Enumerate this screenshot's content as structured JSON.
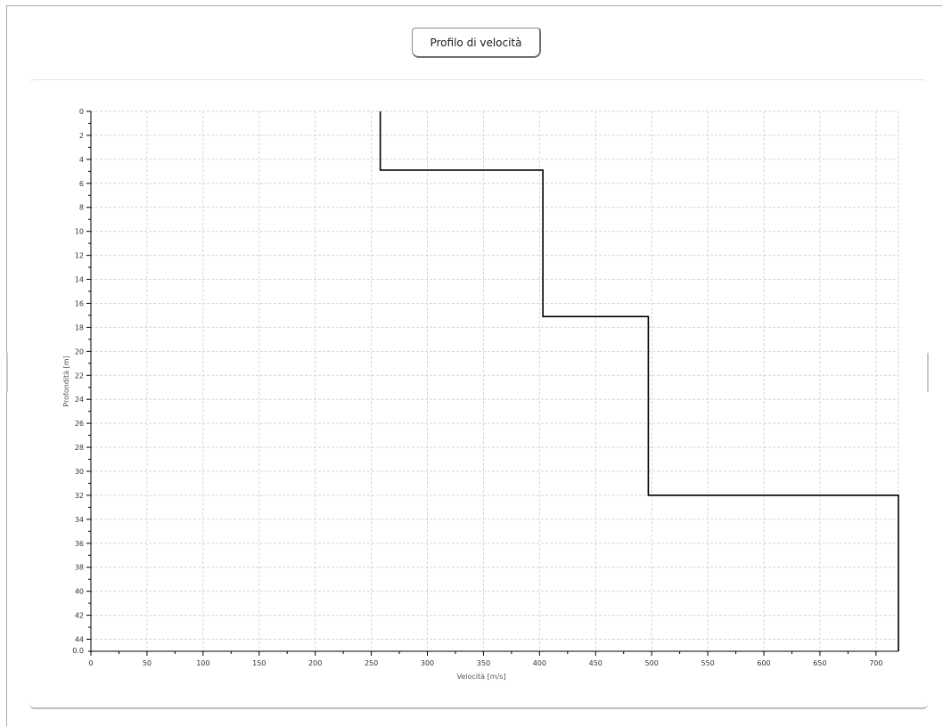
{
  "title": "Profilo di velocità",
  "chart_data": {
    "type": "line",
    "title": "Profilo di velocità",
    "xlabel": "Velocità [m/s]",
    "ylabel": "Profondità [m]",
    "xlim": [
      0,
      720
    ],
    "ylim": [
      0,
      45
    ],
    "y_reversed": true,
    "x_ticks": [
      0,
      50,
      100,
      150,
      200,
      250,
      300,
      350,
      400,
      450,
      500,
      550,
      600,
      650,
      700
    ],
    "y_ticks": [
      0,
      2,
      4,
      6,
      8,
      10,
      12,
      14,
      16,
      18,
      20,
      22,
      24,
      26,
      28,
      30,
      32,
      34,
      36,
      38,
      40,
      42,
      44
    ],
    "y_end_label": "0.0",
    "grid": true,
    "series": [
      {
        "color": "#000000",
        "layers": [
          {
            "velocity": 258,
            "depth_top": 0,
            "depth_bottom": 4.9
          },
          {
            "velocity": 403,
            "depth_top": 4.9,
            "depth_bottom": 17.1
          },
          {
            "velocity": 497,
            "depth_top": 17.1,
            "depth_bottom": 32.0
          },
          {
            "velocity": 720,
            "depth_top": 32.0,
            "depth_bottom": 45
          }
        ]
      }
    ]
  }
}
